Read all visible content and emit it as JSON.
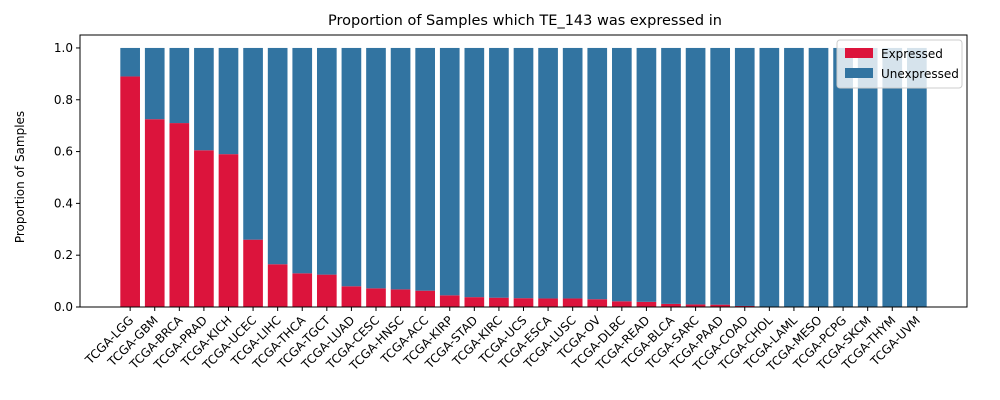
{
  "chart_data": {
    "type": "bar",
    "stacked": true,
    "title": "Proportion of Samples which TE_143 was expressed in",
    "xlabel": "",
    "ylabel": "Proportion of Samples",
    "ylim": [
      0,
      1.05
    ],
    "yticks": [
      "0.0",
      "0.2",
      "0.4",
      "0.6",
      "0.8",
      "1.0"
    ],
    "grid": false,
    "legend_position": "top-right",
    "categories": [
      "TCGA-LGG",
      "TCGA-GBM",
      "TCGA-BRCA",
      "TCGA-PRAD",
      "TCGA-KICH",
      "TCGA-UCEC",
      "TCGA-LIHC",
      "TCGA-THCA",
      "TCGA-TGCT",
      "TCGA-LUAD",
      "TCGA-CESC",
      "TCGA-HNSC",
      "TCGA-ACC",
      "TCGA-KIRP",
      "TCGA-STAD",
      "TCGA-KIRC",
      "TCGA-UCS",
      "TCGA-ESCA",
      "TCGA-LUSC",
      "TCGA-OV",
      "TCGA-DLBC",
      "TCGA-READ",
      "TCGA-BLCA",
      "TCGA-SARC",
      "TCGA-PAAD",
      "TCGA-COAD",
      "TCGA-CHOL",
      "TCGA-LAML",
      "TCGA-MESO",
      "TCGA-PCPG",
      "TCGA-SKCM",
      "TCGA-THYM",
      "TCGA-UVM"
    ],
    "series": [
      {
        "name": "Expressed",
        "color": "#dc143c",
        "values": [
          0.89,
          0.725,
          0.71,
          0.605,
          0.59,
          0.26,
          0.165,
          0.13,
          0.125,
          0.08,
          0.072,
          0.068,
          0.063,
          0.045,
          0.038,
          0.036,
          0.034,
          0.033,
          0.033,
          0.03,
          0.022,
          0.02,
          0.012,
          0.01,
          0.009,
          0.004,
          0,
          0,
          0,
          0,
          0,
          0,
          0
        ]
      },
      {
        "name": "Unexpressed",
        "color": "#3274a1",
        "values": [
          0.11,
          0.275,
          0.29,
          0.395,
          0.41,
          0.74,
          0.835,
          0.87,
          0.875,
          0.92,
          0.928,
          0.932,
          0.937,
          0.955,
          0.962,
          0.964,
          0.966,
          0.967,
          0.967,
          0.97,
          0.978,
          0.98,
          0.988,
          0.99,
          0.991,
          0.996,
          1,
          1,
          1,
          1,
          1,
          1,
          1
        ]
      }
    ]
  }
}
